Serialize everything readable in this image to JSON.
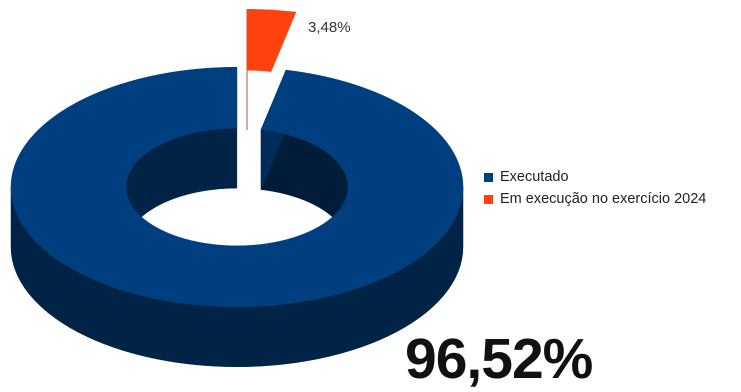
{
  "chart_data": {
    "type": "pie",
    "style": "3d-donut",
    "series": [
      {
        "name": "Executado",
        "value": 96.52,
        "color": "#003f7f"
      },
      {
        "name": "Em execução no exercício 2024",
        "value": 3.48,
        "color": "#ff420e"
      }
    ],
    "data_labels": {
      "executado": "96,52%",
      "em_execucao": "3,48%"
    },
    "legend_position": "right"
  }
}
